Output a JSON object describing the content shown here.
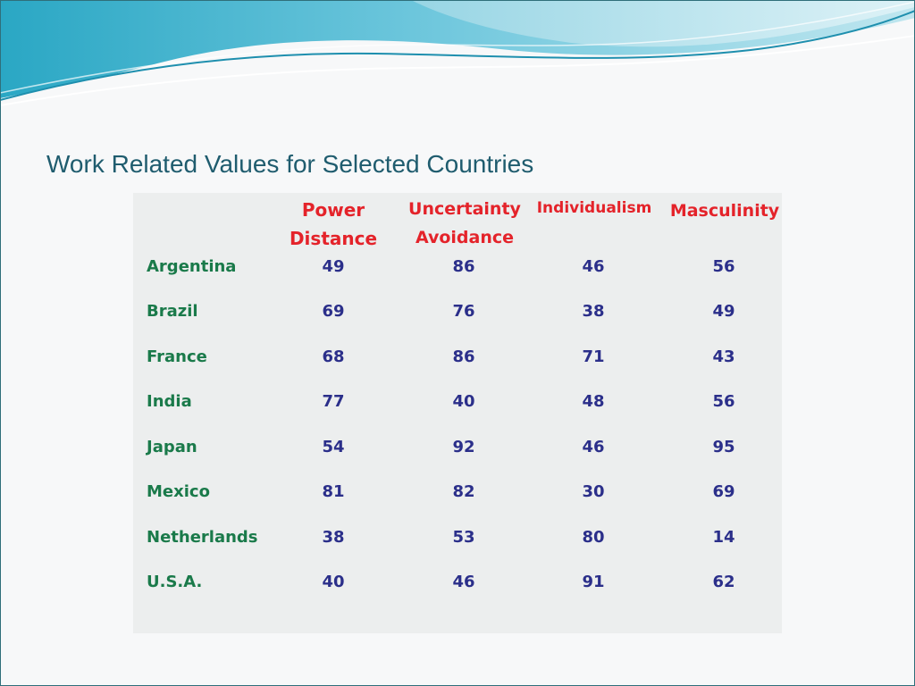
{
  "slide": {
    "title": "Work Related Values for Selected Countries"
  },
  "table": {
    "headers": {
      "power_distance": [
        "Power",
        "Distance"
      ],
      "uncertainty_avoidance": [
        "Uncertainty",
        "Avoidance"
      ],
      "individualism": "Individualism",
      "masculinity": "Masculinity"
    },
    "rows": [
      {
        "country": "Argentina",
        "values": [
          "49",
          "86",
          "46",
          "56"
        ]
      },
      {
        "country": "Brazil",
        "values": [
          "69",
          "76",
          "38",
          "49"
        ]
      },
      {
        "country": "France",
        "values": [
          "68",
          "86",
          "71",
          "43"
        ]
      },
      {
        "country": "India",
        "values": [
          "77",
          "40",
          "48",
          "56"
        ]
      },
      {
        "country": "Japan",
        "values": [
          "54",
          "92",
          "46",
          "95"
        ]
      },
      {
        "country": "Mexico",
        "values": [
          "81",
          "82",
          "30",
          "69"
        ]
      },
      {
        "country": "Netherlands",
        "values": [
          "38",
          "53",
          "80",
          "14"
        ]
      },
      {
        "country": "U.S.A.",
        "values": [
          "40",
          "46",
          "91",
          "62"
        ]
      }
    ]
  },
  "colors": {
    "title": "#1f5c6e",
    "header": "#e4232a",
    "country": "#1a7a4a",
    "value": "#2b2f8a",
    "table_bg": "#eceeee"
  }
}
